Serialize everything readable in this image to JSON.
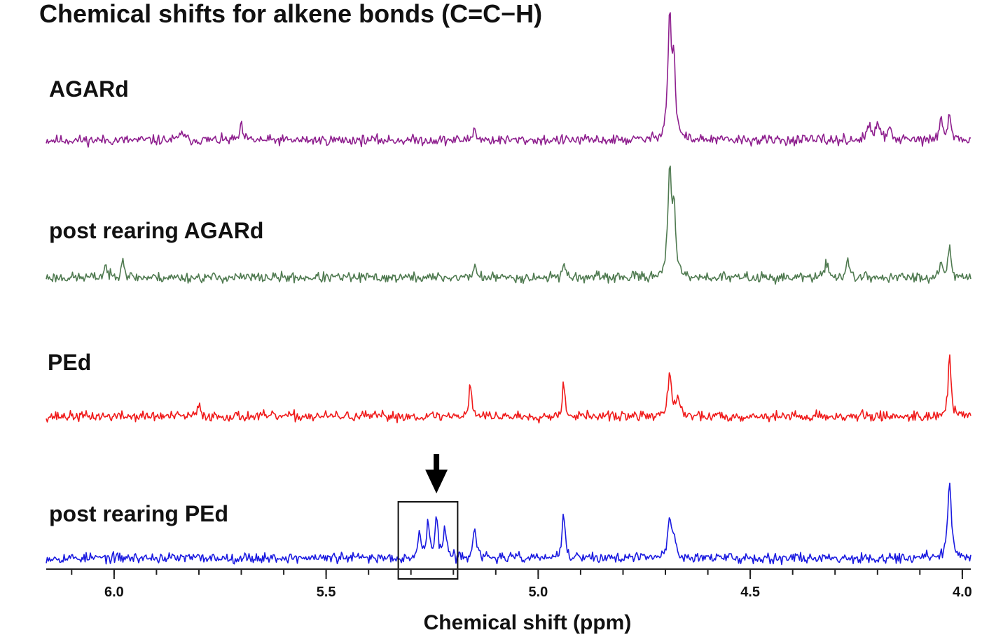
{
  "chart_data": {
    "type": "line",
    "title": "Chemical shifts for alkene bonds (C=C−H)",
    "xlabel": "Chemical shift (ppm)",
    "ylabel": "",
    "xlim": [
      6.16,
      3.98
    ],
    "x_reversed": true,
    "grid": false,
    "ticks": [
      "6.0",
      "5.5",
      "5.0",
      "4.5",
      "4.0"
    ],
    "tick_values": [
      6.0,
      5.5,
      5.0,
      4.5,
      4.0
    ],
    "minor_tick_step": 0.1,
    "series": [
      {
        "name": "AGARd",
        "color": "#8e1f8e",
        "noise": 4.5,
        "seed": 11,
        "peaks": [
          {
            "x": 5.84,
            "h": 15,
            "w": 0.004
          },
          {
            "x": 5.7,
            "h": 20,
            "w": 0.004
          },
          {
            "x": 5.15,
            "h": 18,
            "w": 0.004
          },
          {
            "x": 4.69,
            "h": 175,
            "w": 0.005
          },
          {
            "x": 4.68,
            "h": 100,
            "w": 0.004
          },
          {
            "x": 4.22,
            "h": 20,
            "w": 0.005
          },
          {
            "x": 4.2,
            "h": 25,
            "w": 0.005
          },
          {
            "x": 4.17,
            "h": 18,
            "w": 0.005
          },
          {
            "x": 4.05,
            "h": 30,
            "w": 0.004
          },
          {
            "x": 4.03,
            "h": 40,
            "w": 0.004
          }
        ]
      },
      {
        "name": "post rearing AGARd",
        "color": "#4f7a50",
        "noise": 4.5,
        "seed": 23,
        "peaks": [
          {
            "x": 6.02,
            "h": 18,
            "w": 0.004
          },
          {
            "x": 5.98,
            "h": 30,
            "w": 0.004
          },
          {
            "x": 5.15,
            "h": 18,
            "w": 0.004
          },
          {
            "x": 4.94,
            "h": 22,
            "w": 0.004
          },
          {
            "x": 4.69,
            "h": 150,
            "w": 0.005
          },
          {
            "x": 4.68,
            "h": 90,
            "w": 0.004
          },
          {
            "x": 4.32,
            "h": 20,
            "w": 0.005
          },
          {
            "x": 4.27,
            "h": 22,
            "w": 0.005
          },
          {
            "x": 4.05,
            "h": 25,
            "w": 0.004
          },
          {
            "x": 4.03,
            "h": 45,
            "w": 0.004
          }
        ]
      },
      {
        "name": "PEd",
        "color": "#f01a1a",
        "noise": 4.5,
        "seed": 37,
        "peaks": [
          {
            "x": 5.8,
            "h": 15,
            "w": 0.004
          },
          {
            "x": 5.16,
            "h": 45,
            "w": 0.004
          },
          {
            "x": 4.94,
            "h": 45,
            "w": 0.004
          },
          {
            "x": 4.69,
            "h": 60,
            "w": 0.005
          },
          {
            "x": 4.67,
            "h": 30,
            "w": 0.004
          },
          {
            "x": 4.03,
            "h": 85,
            "w": 0.004
          }
        ]
      },
      {
        "name": "post rearing PEd",
        "color": "#1a1ae0",
        "noise": 4.5,
        "seed": 53,
        "peaks": [
          {
            "x": 5.28,
            "h": 35,
            "w": 0.004
          },
          {
            "x": 5.26,
            "h": 50,
            "w": 0.004
          },
          {
            "x": 5.24,
            "h": 58,
            "w": 0.004
          },
          {
            "x": 5.22,
            "h": 42,
            "w": 0.004
          },
          {
            "x": 5.15,
            "h": 48,
            "w": 0.004
          },
          {
            "x": 4.94,
            "h": 60,
            "w": 0.004
          },
          {
            "x": 4.69,
            "h": 55,
            "w": 0.005
          },
          {
            "x": 4.68,
            "h": 30,
            "w": 0.004
          },
          {
            "x": 4.03,
            "h": 105,
            "w": 0.005
          }
        ]
      }
    ],
    "annotations": [
      {
        "type": "box",
        "x_range": [
          5.33,
          5.19
        ],
        "series": "post rearing PEd"
      },
      {
        "type": "arrow",
        "x": 5.24,
        "direction": "down"
      }
    ]
  }
}
